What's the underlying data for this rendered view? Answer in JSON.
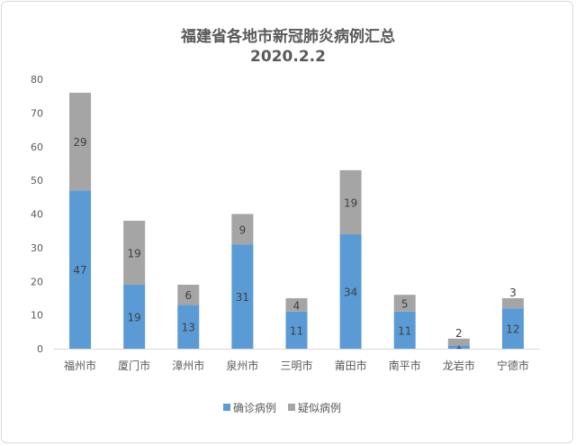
{
  "chart_data": {
    "type": "bar",
    "stacked": true,
    "title": [
      "福建省各地市新冠肺炎病例汇总",
      "2020.2.2"
    ],
    "categories": [
      "福州市",
      "厦门市",
      "漳州市",
      "泉州市",
      "三明市",
      "莆田市",
      "南平市",
      "龙岩市",
      "宁德市"
    ],
    "series": [
      {
        "name": "确诊病例",
        "color": "#5B9BD5",
        "values": [
          47,
          19,
          13,
          31,
          11,
          34,
          11,
          1,
          12
        ]
      },
      {
        "name": "疑似病例",
        "color": "#A5A5A5",
        "values": [
          29,
          19,
          6,
          9,
          4,
          19,
          5,
          2,
          3
        ]
      }
    ],
    "yticks": [
      0,
      10,
      20,
      30,
      40,
      50,
      60,
      70,
      80
    ],
    "ylim": [
      0,
      80
    ],
    "grid": false,
    "legend": "bottom",
    "data_labels": true
  }
}
